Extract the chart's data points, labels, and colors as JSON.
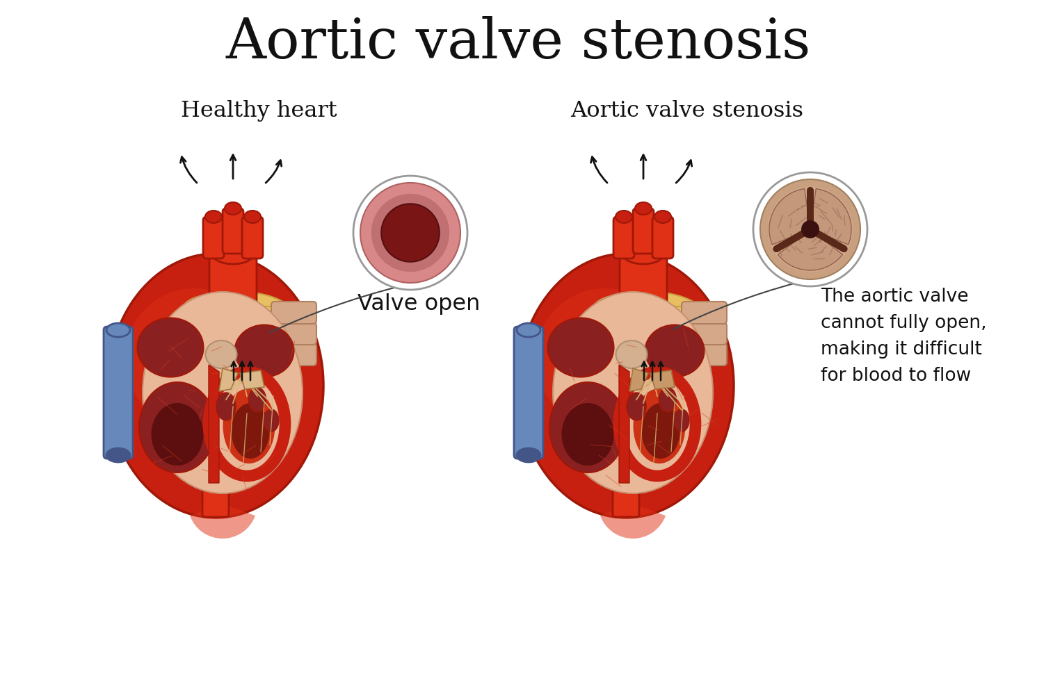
{
  "title": "Aortic valve stenosis",
  "title_fontsize": 58,
  "left_label": "Healthy heart",
  "right_label": "Aortic valve stenosis",
  "valve_open_label": "Valve open",
  "stenosis_desc": "The aortic valve\ncannot fully open,\nmaking it difficult\nfor blood to flow",
  "bg_color": "#ffffff",
  "heart_red_bright": "#e03015",
  "heart_red": "#c82010",
  "heart_red_dark": "#a01808",
  "heart_dark_brown": "#6b1010",
  "aorta_yellow": "#e8c060",
  "aorta_yellow_dark": "#c8a040",
  "blue_vessel": "#6688bb",
  "blue_vessel_dark": "#445588",
  "skin_vessel": "#d4a888",
  "skin_vessel_dark": "#b08060",
  "inner_flesh": "#e8b898",
  "inner_flesh_dark": "#c89070",
  "chamber_dark": "#8b2020",
  "chamber_very_dark": "#4a0808",
  "chordae_color": "#d4b870",
  "valve_open_ring": "#d4908080",
  "valve_open_dark": "#7a2020",
  "stenosis_ring": "#c8a090",
  "stenosis_dark": "#7a4030",
  "label_fontsize": 23,
  "desc_fontsize": 19,
  "arrow_label_fontsize": 21
}
